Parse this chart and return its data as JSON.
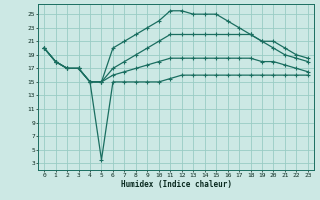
{
  "xlabel": "Humidex (Indice chaleur)",
  "bg_color": "#cce8e4",
  "grid_color": "#99ccc4",
  "line_color": "#1a6e60",
  "xticks": [
    0,
    1,
    2,
    3,
    4,
    5,
    6,
    7,
    8,
    9,
    10,
    11,
    12,
    13,
    14,
    15,
    16,
    17,
    18,
    19,
    20,
    21,
    22,
    23
  ],
  "yticks": [
    3,
    5,
    7,
    9,
    11,
    13,
    15,
    17,
    19,
    21,
    23,
    25
  ],
  "line1_x": [
    0,
    1,
    2,
    3,
    4,
    5,
    6,
    7,
    8,
    9,
    10,
    11,
    12,
    13,
    14,
    15,
    16,
    17,
    18,
    19,
    20,
    21,
    22,
    23
  ],
  "line1_y": [
    20,
    18,
    17,
    17,
    15,
    15,
    20,
    21,
    22,
    23,
    24,
    25.5,
    25.5,
    25,
    25,
    25,
    24,
    23,
    22,
    21,
    20,
    19,
    18.5,
    18
  ],
  "line2_x": [
    0,
    1,
    2,
    3,
    4,
    5,
    6,
    7,
    8,
    9,
    10,
    11,
    12,
    13,
    14,
    15,
    16,
    17,
    18,
    19,
    20,
    21,
    22,
    23
  ],
  "line2_y": [
    20,
    18,
    17,
    17,
    15,
    15,
    17,
    18,
    19,
    20,
    21,
    22,
    22,
    22,
    22,
    22,
    22,
    22,
    22,
    21,
    21,
    20,
    19,
    18.5
  ],
  "line3_x": [
    0,
    1,
    2,
    3,
    4,
    5,
    6,
    7,
    8,
    9,
    10,
    11,
    12,
    13,
    14,
    15,
    16,
    17,
    18,
    19,
    20,
    21,
    22,
    23
  ],
  "line3_y": [
    20,
    18,
    17,
    17,
    15,
    15,
    16,
    16.5,
    17,
    17.5,
    18,
    18.5,
    18.5,
    18.5,
    18.5,
    18.5,
    18.5,
    18.5,
    18.5,
    18,
    18,
    17.5,
    17,
    16.5
  ],
  "line4_x": [
    0,
    1,
    2,
    3,
    4,
    5,
    6,
    7,
    8,
    9,
    10,
    11,
    12,
    13,
    14,
    15,
    16,
    17,
    18,
    19,
    20,
    21,
    22,
    23
  ],
  "line4_y": [
    20,
    18,
    17,
    17,
    15,
    3.5,
    15,
    15,
    15,
    15,
    15,
    15.5,
    16,
    16,
    16,
    16,
    16,
    16,
    16,
    16,
    16,
    16,
    16,
    16
  ],
  "marker_size": 2.5,
  "linewidth": 0.9
}
